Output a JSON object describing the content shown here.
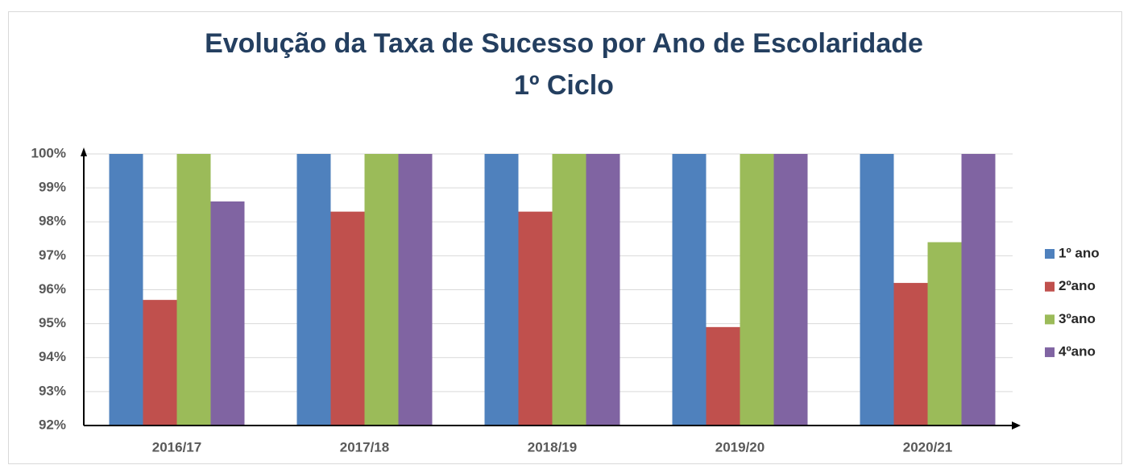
{
  "chart_data": {
    "type": "bar",
    "title": "Evolução da Taxa de Sucesso por Ano de Escolaridade",
    "subtitle": "1º Ciclo",
    "categories": [
      "2016/17",
      "2017/18",
      "2018/19",
      "2019/20",
      "2020/21"
    ],
    "series": [
      {
        "name": "1º ano",
        "color": "#4f81bd",
        "values": [
          100,
          100,
          100,
          100,
          100
        ]
      },
      {
        "name": "2ºano",
        "color": "#c0504d",
        "values": [
          95.7,
          98.3,
          98.3,
          94.9,
          96.2
        ]
      },
      {
        "name": "3ºano",
        "color": "#9bbb59",
        "values": [
          100,
          100,
          100,
          100,
          97.4
        ]
      },
      {
        "name": "4ºano",
        "color": "#8064a2",
        "values": [
          98.6,
          100,
          100,
          100,
          100
        ]
      }
    ],
    "ylim": [
      92,
      100
    ],
    "yticks": [
      {
        "value": 92,
        "label": "92%"
      },
      {
        "value": 93,
        "label": "93%"
      },
      {
        "value": 94,
        "label": "94%"
      },
      {
        "value": 95,
        "label": "95%"
      },
      {
        "value": 96,
        "label": "96%"
      },
      {
        "value": 97,
        "label": "97%"
      },
      {
        "value": 98,
        "label": "98%"
      },
      {
        "value": 99,
        "label": "99%"
      },
      {
        "value": 100,
        "label": "100%"
      }
    ],
    "grid": true,
    "legend": "right"
  }
}
